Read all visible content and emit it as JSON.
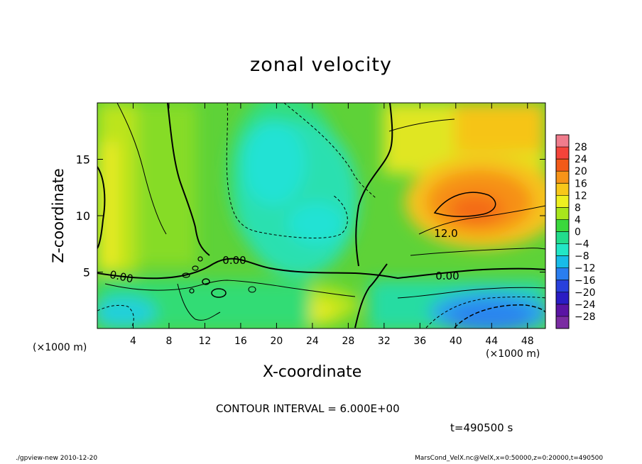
{
  "chart_data": {
    "type": "heatmap",
    "title": "zonal velocity",
    "xlabel": "X-coordinate",
    "ylabel": "Z-coordinate",
    "x_unit": "(×1000 m)",
    "xlim": [
      0,
      50
    ],
    "ylim": [
      0,
      20
    ],
    "x_ticks": [
      "4",
      "8",
      "12",
      "16",
      "20",
      "24",
      "28",
      "32",
      "36",
      "40",
      "44",
      "48"
    ],
    "y_ticks": [
      "5",
      "10",
      "15"
    ],
    "colorbar": {
      "levels": [
        "28",
        "24",
        "20",
        "16",
        "12",
        "8",
        "4",
        "0",
        "−4",
        "−8",
        "−12",
        "−16",
        "−20",
        "−24",
        "−28"
      ],
      "colors": [
        "#f07c8c",
        "#f4443a",
        "#f25a18",
        "#f79418",
        "#f8c81a",
        "#eef020",
        "#a8e61c",
        "#3ad83c",
        "#22dc8c",
        "#22e6c6",
        "#18bce8",
        "#2a7ef0",
        "#2840dc",
        "#2a1cc4",
        "#5a14a4",
        "#7a2ca2"
      ]
    },
    "contour_labels": [
      "0.00",
      "0.00",
      "0.00",
      "12.0"
    ],
    "contour_interval": "CONTOUR INTERVAL = 6.000E+00",
    "time": "t=490500 s"
  },
  "footer": {
    "left": "./gpview-new  2010-12-20",
    "right": "MarsCond_VelX.nc@VelX,x=0:50000,z=0:20000,t=490500"
  }
}
